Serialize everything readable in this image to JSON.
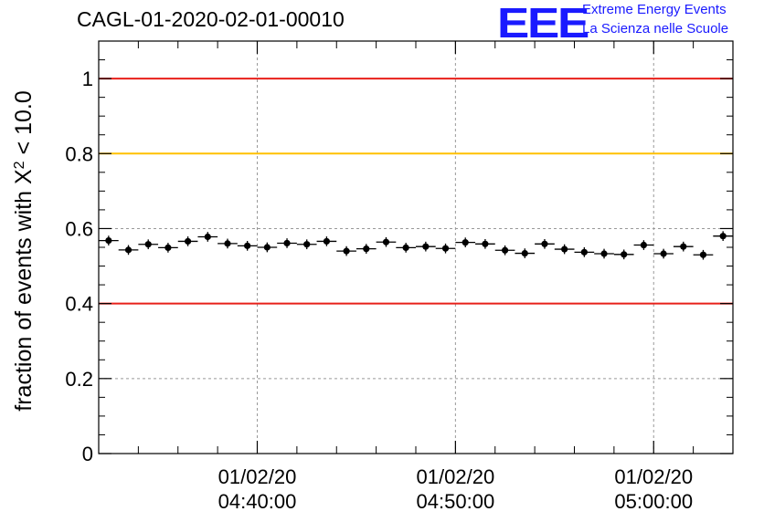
{
  "header": {
    "run_id": "CAGL-01-2020-02-01-00010",
    "logo_mark": "EEE",
    "logo_line1": "Extreme Energy Events",
    "logo_line2": "La Scienza nelle Scuole",
    "logo_color": "#1a1aff"
  },
  "chart_data": {
    "type": "scatter",
    "ylabel_prefix": "fraction of events with ",
    "ylabel_symbol": "X",
    "ylabel_superscript": "2",
    "ylabel_suffix": " < 10.0",
    "ylim": [
      0,
      1.1
    ],
    "x_range_minutes": [
      0,
      32
    ],
    "grid": true,
    "y_ticks": [
      {
        "value": 0,
        "label": "0"
      },
      {
        "value": 0.2,
        "label": "0.2"
      },
      {
        "value": 0.4,
        "label": "0.4"
      },
      {
        "value": 0.6,
        "label": "0.6"
      },
      {
        "value": 0.8,
        "label": "0.8"
      },
      {
        "value": 1,
        "label": "1"
      }
    ],
    "x_major_ticks": [
      {
        "minute": 8.0,
        "date": "01/02/20",
        "time": "04:40:00"
      },
      {
        "minute": 18.0,
        "date": "01/02/20",
        "time": "04:50:00"
      },
      {
        "minute": 28.0,
        "date": "01/02/20",
        "time": "05:00:00"
      }
    ],
    "x_minor_ticks": [
      2,
      4,
      6,
      10,
      12,
      14,
      16,
      20,
      22,
      24,
      26,
      30
    ],
    "reference_lines": [
      {
        "value": 1.0,
        "color": "#e8201a"
      },
      {
        "value": 0.8,
        "color": "#ffc000"
      },
      {
        "value": 0.4,
        "color": "#e8201a"
      }
    ],
    "bin_width_minutes": 1,
    "points": [
      {
        "x": 0.5,
        "y": 0.568
      },
      {
        "x": 1.5,
        "y": 0.543
      },
      {
        "x": 2.5,
        "y": 0.558
      },
      {
        "x": 3.5,
        "y": 0.549
      },
      {
        "x": 4.5,
        "y": 0.566
      },
      {
        "x": 5.5,
        "y": 0.578
      },
      {
        "x": 6.5,
        "y": 0.56
      },
      {
        "x": 7.5,
        "y": 0.554
      },
      {
        "x": 8.5,
        "y": 0.55
      },
      {
        "x": 9.5,
        "y": 0.561
      },
      {
        "x": 10.5,
        "y": 0.558
      },
      {
        "x": 11.5,
        "y": 0.566
      },
      {
        "x": 12.5,
        "y": 0.54
      },
      {
        "x": 13.5,
        "y": 0.546
      },
      {
        "x": 14.5,
        "y": 0.564
      },
      {
        "x": 15.5,
        "y": 0.549
      },
      {
        "x": 16.5,
        "y": 0.552
      },
      {
        "x": 17.5,
        "y": 0.547
      },
      {
        "x": 18.5,
        "y": 0.563
      },
      {
        "x": 19.5,
        "y": 0.559
      },
      {
        "x": 20.5,
        "y": 0.542
      },
      {
        "x": 21.5,
        "y": 0.534
      },
      {
        "x": 22.5,
        "y": 0.559
      },
      {
        "x": 23.5,
        "y": 0.545
      },
      {
        "x": 24.5,
        "y": 0.537
      },
      {
        "x": 25.5,
        "y": 0.533
      },
      {
        "x": 26.5,
        "y": 0.531
      },
      {
        "x": 27.5,
        "y": 0.556
      },
      {
        "x": 28.5,
        "y": 0.533
      },
      {
        "x": 29.5,
        "y": 0.552
      },
      {
        "x": 30.5,
        "y": 0.53
      },
      {
        "x": 31.5,
        "y": 0.58
      }
    ],
    "y_error": 0.013,
    "marker_color": "#000000"
  }
}
